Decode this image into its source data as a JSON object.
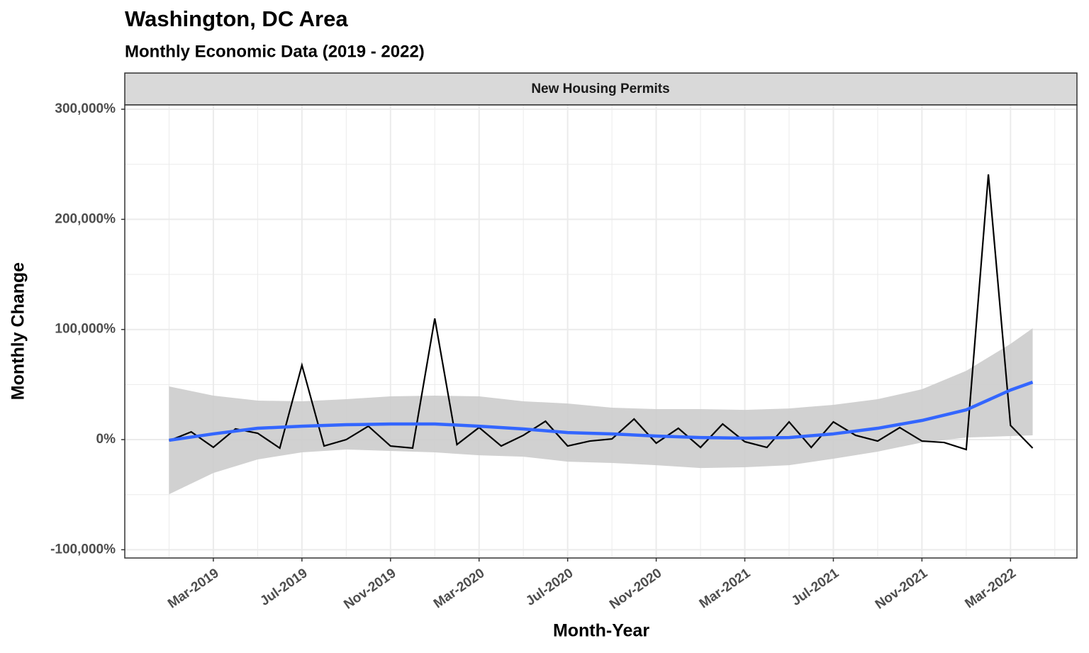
{
  "chart_data": {
    "type": "line",
    "title": "Washington, DC Area",
    "subtitle": "Monthly Economic Data (2019 - 2022)",
    "facet_label": "New Housing Permits",
    "x_label": "Month-Year",
    "y_label": "Monthly Change",
    "x": [
      "2019-01",
      "2019-02",
      "2019-03",
      "2019-04",
      "2019-05",
      "2019-06",
      "2019-07",
      "2019-08",
      "2019-09",
      "2019-10",
      "2019-11",
      "2019-12",
      "2020-01",
      "2020-02",
      "2020-03",
      "2020-04",
      "2020-05",
      "2020-06",
      "2020-07",
      "2020-08",
      "2020-09",
      "2020-10",
      "2020-11",
      "2020-12",
      "2021-01",
      "2021-02",
      "2021-03",
      "2021-04",
      "2021-05",
      "2021-06",
      "2021-07",
      "2021-08",
      "2021-09",
      "2021-10",
      "2021-11",
      "2021-12",
      "2022-01",
      "2022-02",
      "2022-03",
      "2022-04"
    ],
    "values": [
      -1000,
      7000,
      -7000,
      9700,
      5800,
      -7700,
      67600,
      -5800,
      0,
      12200,
      -5800,
      -7700,
      110000,
      -4500,
      11000,
      -5800,
      3900,
      16700,
      -5800,
      -1300,
      600,
      18700,
      -3200,
      10300,
      -7100,
      14200,
      -1900,
      -7100,
      16100,
      -7100,
      16100,
      3900,
      -1300,
      10900,
      -1300,
      -2600,
      -9000,
      240800,
      12900,
      -7700
    ],
    "color": "#000000",
    "trend": {
      "color": "#3366FF",
      "band_color": "#cccccc",
      "x": [
        "2019-01",
        "2019-03",
        "2019-05",
        "2019-07",
        "2019-09",
        "2019-11",
        "2020-01",
        "2020-03",
        "2020-05",
        "2020-07",
        "2020-09",
        "2020-11",
        "2021-01",
        "2021-03",
        "2021-05",
        "2021-07",
        "2021-09",
        "2021-11",
        "2022-01",
        "2022-03",
        "2022-04"
      ],
      "values": [
        -600,
        5200,
        10300,
        12200,
        13500,
        14200,
        14200,
        12200,
        9700,
        6400,
        5200,
        3200,
        1900,
        1300,
        1900,
        5200,
        10300,
        17400,
        27000,
        45000,
        52200
      ],
      "lower": [
        -49600,
        -30300,
        -18000,
        -11600,
        -9000,
        -10300,
        -11600,
        -14200,
        -15500,
        -20000,
        -21200,
        -23200,
        -25800,
        -25100,
        -23200,
        -17400,
        -10900,
        -2600,
        1900,
        3200,
        3900
      ],
      "upper": [
        48300,
        39900,
        35400,
        34800,
        36700,
        39300,
        39900,
        39300,
        34800,
        32800,
        29000,
        27700,
        27700,
        27000,
        28300,
        31600,
        36700,
        45700,
        62500,
        86900,
        101100
      ]
    },
    "xlim": [
      "2018-11",
      "2022-06"
    ],
    "xticks": [
      {
        "value": "2019-03",
        "label": "Mar-2019"
      },
      {
        "value": "2019-07",
        "label": "Jul-2019"
      },
      {
        "value": "2019-11",
        "label": "Nov-2019"
      },
      {
        "value": "2020-03",
        "label": "Mar-2020"
      },
      {
        "value": "2020-07",
        "label": "Jul-2020"
      },
      {
        "value": "2020-11",
        "label": "Nov-2020"
      },
      {
        "value": "2021-03",
        "label": "Mar-2021"
      },
      {
        "value": "2021-07",
        "label": "Jul-2021"
      },
      {
        "value": "2021-11",
        "label": "Nov-2021"
      },
      {
        "value": "2022-03",
        "label": "Mar-2022"
      }
    ],
    "ylim": [
      -107500,
      303900
    ],
    "yticks": [
      {
        "value": -100000,
        "label": "-100,000%"
      },
      {
        "value": 0,
        "label": "0%"
      },
      {
        "value": 100000,
        "label": "100,000%"
      },
      {
        "value": 200000,
        "label": "200,000%"
      },
      {
        "value": 300000,
        "label": "300,000%"
      }
    ],
    "grid": true
  }
}
